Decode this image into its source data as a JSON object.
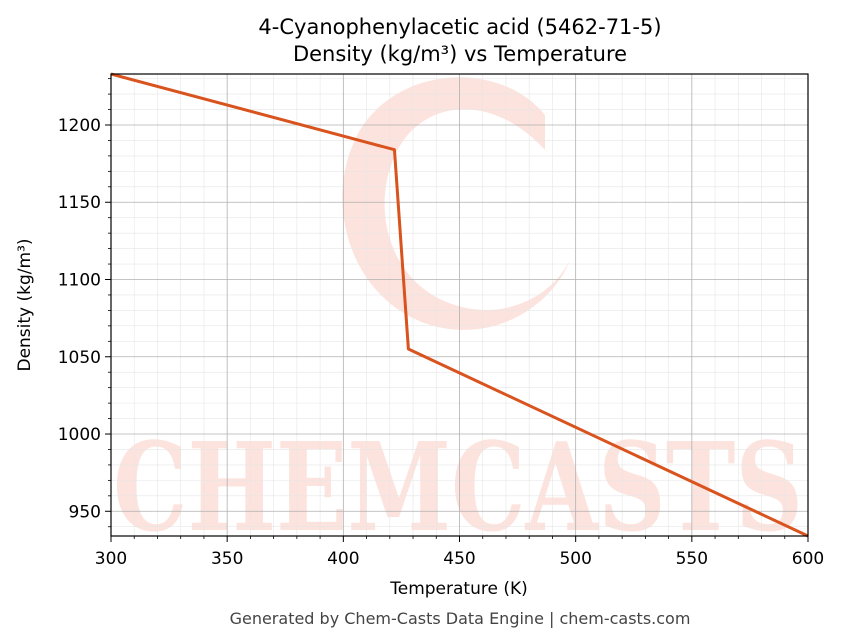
{
  "chart_data": {
    "type": "line",
    "title": "4-Cyanophenylacetic acid (5462-71-5)",
    "subtitle": "Density (kg/m³) vs Temperature",
    "xlabel": "Temperature (K)",
    "ylabel": "Density (kg/m³)",
    "xlim": [
      300,
      600
    ],
    "ylim": [
      934,
      1233
    ],
    "x_ticks": [
      300,
      350,
      400,
      450,
      500,
      550,
      600
    ],
    "y_ticks": [
      950,
      1000,
      1050,
      1100,
      1150,
      1200
    ],
    "grid": true,
    "legend": "none",
    "series": [
      {
        "color": "#d9531e",
        "x": [
          300,
          422,
          428,
          600
        ],
        "y": [
          1233,
          1184,
          1055,
          934
        ]
      }
    ]
  },
  "footer": "Generated by Chem-Casts Data Engine | chem-casts.com",
  "watermark": "CHEMCASTS",
  "colors": {
    "line": "#d9531e",
    "watermark": "#fde3dd",
    "grid_major": "#b0b0b0",
    "grid_minor": "#e6e6e6"
  }
}
